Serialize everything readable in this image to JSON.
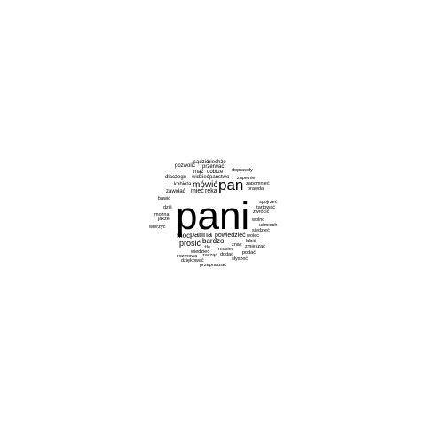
{
  "words": [
    {
      "text": "pani",
      "weight": 1.0
    },
    {
      "text": "pan",
      "weight": 0.38
    },
    {
      "text": "mówić",
      "weight": 0.22
    },
    {
      "text": "panna",
      "weight": 0.2
    },
    {
      "text": "prosić",
      "weight": 0.2
    },
    {
      "text": "móc",
      "weight": 0.18
    },
    {
      "text": "bardzo",
      "weight": 0.16
    },
    {
      "text": "powiedzieć",
      "weight": 0.15
    },
    {
      "text": "ręka",
      "weight": 0.14
    },
    {
      "text": "mieć",
      "weight": 0.14
    },
    {
      "text": "sądzić",
      "weight": 0.11
    },
    {
      "text": "niechże",
      "weight": 0.1
    },
    {
      "text": "pozwolić",
      "weight": 0.1
    },
    {
      "text": "przerwać",
      "weight": 0.1
    },
    {
      "text": "mąż",
      "weight": 0.1
    },
    {
      "text": "dobrze",
      "weight": 0.1
    },
    {
      "text": "dlaczego",
      "weight": 0.1
    },
    {
      "text": "widzieć",
      "weight": 0.1
    },
    {
      "text": "państwo",
      "weight": 0.1
    },
    {
      "text": "kobieta",
      "weight": 0.1
    },
    {
      "text": "zawołać",
      "weight": 0.1
    },
    {
      "text": "doprawdy",
      "weight": 0.09
    },
    {
      "text": "zupełnie",
      "weight": 0.09
    },
    {
      "text": "zapomnieć",
      "weight": 0.09
    },
    {
      "text": "prawda",
      "weight": 0.09
    },
    {
      "text": "bawić",
      "weight": 0.09
    },
    {
      "text": "spojrzeć",
      "weight": 0.09
    },
    {
      "text": "żartować",
      "weight": 0.09
    },
    {
      "text": "zwrócić",
      "weight": 0.09
    },
    {
      "text": "dziś",
      "weight": 0.09
    },
    {
      "text": "można",
      "weight": 0.09
    },
    {
      "text": "jakże",
      "weight": 0.09
    },
    {
      "text": "wolno",
      "weight": 0.09
    },
    {
      "text": "uśmiech",
      "weight": 0.09
    },
    {
      "text": "wierzyć",
      "weight": 0.09
    },
    {
      "text": "siedzieć",
      "weight": 0.09
    },
    {
      "text": "wolec",
      "weight": 0.09
    },
    {
      "text": "znać",
      "weight": 0.09
    },
    {
      "text": "lubić",
      "weight": 0.09
    },
    {
      "text": "źle",
      "weight": 0.09
    },
    {
      "text": "zmieszać",
      "weight": 0.09
    },
    {
      "text": "wiedzieć",
      "weight": 0.09
    },
    {
      "text": "musieć",
      "weight": 0.09
    },
    {
      "text": "podać",
      "weight": 0.09
    },
    {
      "text": "rozmowa",
      "weight": 0.09
    },
    {
      "text": "zacząć",
      "weight": 0.09
    },
    {
      "text": "dodać",
      "weight": 0.09
    },
    {
      "text": "słyszeć",
      "weight": 0.09
    },
    {
      "text": "dziękować",
      "weight": 0.09
    },
    {
      "text": "przepraszać",
      "weight": 0.09
    }
  ]
}
